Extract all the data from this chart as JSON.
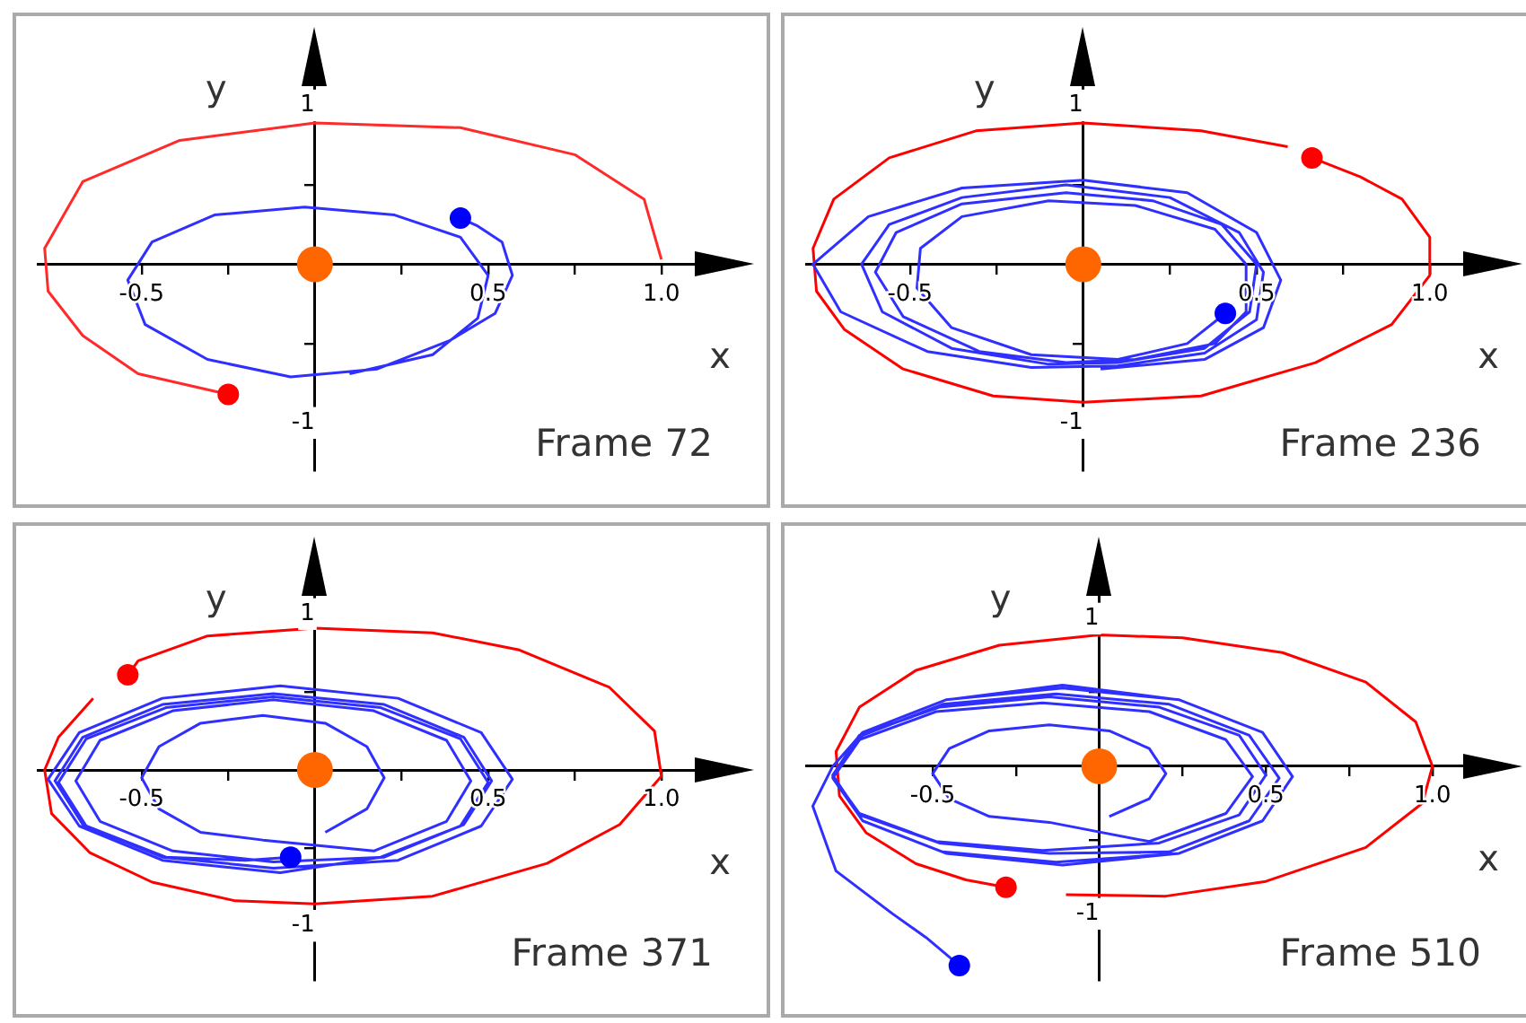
{
  "chart_data": [
    {
      "type": "line",
      "xlabel": "x",
      "ylabel": "y",
      "annotations": [
        "Frame 72"
      ],
      "grid": false,
      "legend": false,
      "xlim": [
        -0.8,
        1.2
      ],
      "ylim": [
        -1.3,
        1.35
      ],
      "xticks": [
        {
          "value": -0.5,
          "label": "-0.5"
        },
        {
          "value": -0.25,
          "label": null
        },
        {
          "value": 0.25,
          "label": null
        },
        {
          "value": 0.5,
          "label": "0.5"
        },
        {
          "value": 0.75,
          "label": null
        },
        {
          "value": 1,
          "label": "1.0"
        }
      ],
      "yticks": [
        {
          "value": -1,
          "label": "-1"
        },
        {
          "value": -0.5,
          "label": null
        },
        {
          "value": 0.5,
          "label": null
        },
        {
          "value": 1,
          "label": "1"
        }
      ],
      "series": [
        {
          "type": "line",
          "marker": "none",
          "color": "#ff2a2a",
          "x": [
            1.0,
            0.95,
            0.75,
            0.42,
            0,
            -0.39,
            -0.67,
            -0.78,
            -0.77,
            -0.67,
            -0.51,
            -0.25
          ],
          "values": [
            0.03,
            0.41,
            0.69,
            0.86,
            0.89,
            0.78,
            0.52,
            0.1,
            -0.17,
            -0.45,
            -0.69,
            -0.82
          ]
        },
        {
          "type": "line",
          "marker": "none",
          "color": "#2f2fff",
          "x": [
            0.1,
            0.34,
            0.47,
            0.5,
            0.42,
            0.23,
            -0.03,
            -0.29,
            -0.47,
            -0.54,
            -0.49,
            -0.31,
            -0.07,
            0.18,
            0.39,
            0.52,
            0.57,
            0.54,
            0.47,
            0.42
          ],
          "values": [
            -0.69,
            -0.57,
            -0.34,
            -0.07,
            0.17,
            0.31,
            0.36,
            0.31,
            0.14,
            -0.1,
            -0.38,
            -0.6,
            -0.71,
            -0.66,
            -0.48,
            -0.31,
            -0.07,
            0.14,
            0.24,
            0.29
          ]
        },
        {
          "type": "scatter",
          "marker": "circle",
          "color": "#ff0000",
          "x": [
            -0.25
          ],
          "values": [
            -0.82
          ]
        },
        {
          "type": "scatter",
          "marker": "circle",
          "color": "#0000ff",
          "x": [
            0.42
          ],
          "values": [
            0.29
          ]
        },
        {
          "type": "bubble",
          "marker": "circle",
          "color": "#ff6600",
          "x": [
            0
          ],
          "values": [
            0
          ],
          "sizes": [
            1
          ]
        }
      ]
    },
    {
      "type": "line",
      "xlabel": "x",
      "ylabel": "y",
      "annotations": [
        "Frame 236"
      ],
      "grid": false,
      "legend": false,
      "xlim": [
        -0.8,
        1.2
      ],
      "ylim": [
        -1.3,
        1.35
      ],
      "xticks": [
        {
          "value": -0.5,
          "label": "-0.5"
        },
        {
          "value": -0.25,
          "label": null
        },
        {
          "value": 0.25,
          "label": null
        },
        {
          "value": 0.5,
          "label": "0.5"
        },
        {
          "value": 0.75,
          "label": null
        },
        {
          "value": 1,
          "label": "1.0"
        }
      ],
      "yticks": [
        {
          "value": -1,
          "label": "-1"
        },
        {
          "value": -0.5,
          "label": null
        },
        {
          "value": 0.5,
          "label": null
        },
        {
          "value": 1,
          "label": "1"
        }
      ],
      "series": [
        {
          "type": "line",
          "marker": "none",
          "color": "#ff0000",
          "x": [
            0.59,
            0.34,
            0,
            -0.31,
            -0.56,
            -0.72,
            -0.78,
            -0.77,
            -0.69,
            -0.52,
            -0.26,
            0,
            0.34,
            0.67,
            0.89,
            1.0,
            1.0,
            0.92,
            0.8,
            0.66
          ],
          "values": [
            0.74,
            0.84,
            0.89,
            0.84,
            0.67,
            0.41,
            0.1,
            -0.17,
            -0.41,
            -0.66,
            -0.83,
            -0.87,
            -0.83,
            -0.62,
            -0.38,
            -0.07,
            0.17,
            0.41,
            0.55,
            0.67
          ]
        },
        {
          "type": "line",
          "marker": "none",
          "color": "#2f2fff",
          "x": [
            0.05,
            0.35,
            0.52,
            0.57,
            0.5,
            0.3,
            0,
            -0.35,
            -0.62,
            -0.78,
            -0.7,
            -0.45,
            -0.15,
            0.1,
            0.35,
            0.5,
            0.52,
            0.45,
            0.25,
            -0.05,
            -0.35,
            -0.56,
            -0.64,
            -0.58,
            -0.38,
            -0.1,
            0.1,
            0.35,
            0.48,
            0.5,
            0.4,
            0.2,
            -0.05,
            -0.35,
            -0.54,
            -0.6,
            -0.52,
            -0.3,
            -0.05,
            0.15,
            0.38,
            0.47,
            0.47,
            0.38,
            0.15,
            -0.1,
            -0.35,
            -0.47,
            -0.48,
            -0.38,
            -0.15,
            0.1,
            0.3,
            0.41
          ],
          "values": [
            -0.66,
            -0.6,
            -0.4,
            -0.1,
            0.2,
            0.45,
            0.53,
            0.48,
            0.3,
            0,
            -0.3,
            -0.55,
            -0.65,
            -0.64,
            -0.56,
            -0.35,
            -0.05,
            0.2,
            0.42,
            0.5,
            0.42,
            0.25,
            0,
            -0.3,
            -0.53,
            -0.63,
            -0.62,
            -0.53,
            -0.3,
            0,
            0.25,
            0.4,
            0.45,
            0.38,
            0.2,
            -0.05,
            -0.33,
            -0.55,
            -0.62,
            -0.6,
            -0.5,
            -0.3,
            0,
            0.22,
            0.37,
            0.4,
            0.3,
            0.1,
            -0.15,
            -0.4,
            -0.57,
            -0.6,
            -0.5,
            -0.31
          ]
        },
        {
          "type": "scatter",
          "marker": "circle",
          "color": "#ff0000",
          "x": [
            0.66
          ],
          "values": [
            0.67
          ]
        },
        {
          "type": "scatter",
          "marker": "circle",
          "color": "#0000ff",
          "x": [
            0.41
          ],
          "values": [
            -0.31
          ]
        },
        {
          "type": "bubble",
          "marker": "circle",
          "color": "#ff6600",
          "x": [
            0
          ],
          "values": [
            0
          ],
          "sizes": [
            1
          ]
        }
      ]
    },
    {
      "type": "line",
      "xlabel": "x",
      "ylabel": "y",
      "annotations": [
        "Frame 371"
      ],
      "grid": false,
      "legend": false,
      "xlim": [
        -0.8,
        1.2
      ],
      "ylim": [
        -1.35,
        1.35
      ],
      "xticks": [
        {
          "value": -0.5,
          "label": "-0.5"
        },
        {
          "value": -0.25,
          "label": null
        },
        {
          "value": 0.25,
          "label": null
        },
        {
          "value": 0.5,
          "label": "0.5"
        },
        {
          "value": 0.75,
          "label": null
        },
        {
          "value": 1,
          "label": "1.0"
        }
      ],
      "yticks": [
        {
          "value": -1,
          "label": "-1"
        },
        {
          "value": -0.5,
          "label": null
        },
        {
          "value": 0.5,
          "label": null
        },
        {
          "value": 1,
          "label": "1"
        }
      ],
      "series": [
        {
          "type": "line",
          "marker": "none",
          "color": "#ff0000",
          "x": [
            -0.64,
            -0.74,
            -0.78,
            -0.76,
            -0.65,
            -0.47,
            -0.23,
            0,
            0.34,
            0.67,
            0.88,
            1.0,
            0.98,
            0.85,
            0.59,
            0.34,
            0,
            -0.31,
            -0.51,
            -0.54
          ],
          "values": [
            0.46,
            0.21,
            0,
            -0.28,
            -0.53,
            -0.72,
            -0.84,
            -0.86,
            -0.81,
            -0.6,
            -0.35,
            -0.04,
            0.25,
            0.53,
            0.77,
            0.88,
            0.91,
            0.86,
            0.7,
            0.61
          ]
        },
        {
          "type": "line",
          "marker": "none",
          "color": "#2f2fff",
          "x": [
            0.03,
            0.15,
            0.2,
            0.15,
            0.03,
            -0.15,
            -0.33,
            -0.45,
            -0.5,
            -0.45,
            -0.33,
            -0.15,
            0.17,
            0.38,
            0.45,
            0.38,
            0.17,
            -0.12,
            -0.41,
            -0.62,
            -0.69,
            -0.62,
            -0.41,
            -0.12,
            0.2,
            0.43,
            0.51,
            0.43,
            0.2,
            -0.12,
            -0.44,
            -0.67,
            -0.75,
            -0.67,
            -0.44,
            -0.12,
            0.24,
            0.48,
            0.57,
            0.48,
            0.24,
            -0.1,
            -0.44,
            -0.68,
            -0.77,
            -0.68,
            -0.44,
            -0.1,
            0.19,
            0.42,
            0.5,
            0.42,
            0.19,
            -0.12,
            -0.43,
            -0.66,
            -0.74,
            -0.66,
            -0.43,
            -0.2,
            -0.07
          ],
          "values": [
            -0.4,
            -0.25,
            -0.05,
            0.15,
            0.3,
            0.35,
            0.3,
            0.15,
            -0.05,
            -0.25,
            -0.4,
            -0.45,
            -0.52,
            -0.33,
            -0.07,
            0.19,
            0.38,
            0.45,
            0.38,
            0.19,
            -0.07,
            -0.33,
            -0.52,
            -0.59,
            -0.56,
            -0.35,
            -0.07,
            0.21,
            0.42,
            0.49,
            0.42,
            0.21,
            -0.07,
            -0.35,
            -0.56,
            -0.63,
            -0.58,
            -0.36,
            -0.06,
            0.24,
            0.46,
            0.54,
            0.46,
            0.24,
            -0.06,
            -0.36,
            -0.58,
            -0.66,
            -0.56,
            -0.36,
            -0.08,
            0.2,
            0.4,
            0.47,
            0.4,
            0.2,
            -0.08,
            -0.36,
            -0.56,
            -0.58,
            -0.56
          ]
        },
        {
          "type": "scatter",
          "marker": "circle",
          "color": "#ff0000",
          "x": [
            -0.54
          ],
          "values": [
            0.61
          ]
        },
        {
          "type": "scatter",
          "marker": "circle",
          "color": "#0000ff",
          "x": [
            -0.07
          ],
          "values": [
            -0.56
          ]
        },
        {
          "type": "bubble",
          "marker": "circle",
          "color": "#ff6600",
          "x": [
            0
          ],
          "values": [
            0
          ],
          "sizes": [
            1
          ]
        }
      ]
    },
    {
      "type": "line",
      "xlabel": "x",
      "ylabel": "y",
      "annotations": [
        "Frame 510"
      ],
      "grid": false,
      "legend": false,
      "xlim": [
        -0.88,
        1.2
      ],
      "ylim": [
        -1.45,
        1.4
      ],
      "xticks": [
        {
          "value": -0.5,
          "label": "-0.5"
        },
        {
          "value": -0.25,
          "label": null
        },
        {
          "value": 0.25,
          "label": null
        },
        {
          "value": 0.5,
          "label": "0.5"
        },
        {
          "value": 0.75,
          "label": null
        },
        {
          "value": 1,
          "label": "1.0"
        }
      ],
      "yticks": [
        {
          "value": -1,
          "label": "-1"
        },
        {
          "value": -0.5,
          "label": null
        },
        {
          "value": 0.5,
          "label": null
        },
        {
          "value": 1,
          "label": "1"
        }
      ],
      "series": [
        {
          "type": "line",
          "marker": "none",
          "color": "#ff0000",
          "x": [
            -0.1,
            0.2,
            0.5,
            0.8,
            0.97,
            1.0,
            0.95,
            0.8,
            0.55,
            0.25,
            0,
            -0.3,
            -0.55,
            -0.72,
            -0.79,
            -0.78,
            -0.7,
            -0.55,
            -0.4,
            -0.28
          ],
          "values": [
            -0.87,
            -0.88,
            -0.78,
            -0.55,
            -0.25,
            0,
            0.3,
            0.57,
            0.77,
            0.87,
            0.89,
            0.82,
            0.65,
            0.4,
            0.1,
            -0.2,
            -0.45,
            -0.66,
            -0.77,
            -0.82
          ]
        },
        {
          "type": "line",
          "marker": "none",
          "color": "#2f2fff",
          "x": [
            0.03,
            0.15,
            0.2,
            0.15,
            0.03,
            -0.15,
            -0.33,
            -0.45,
            -0.5,
            -0.45,
            -0.33,
            -0.15,
            0.15,
            0.38,
            0.46,
            0.38,
            0.15,
            -0.17,
            -0.49,
            -0.72,
            -0.8,
            -0.72,
            -0.49,
            -0.17,
            0.18,
            0.42,
            0.5,
            0.42,
            0.18,
            -0.15,
            -0.48,
            -0.72,
            -0.8,
            -0.72,
            -0.48,
            -0.15,
            0.21,
            0.45,
            0.54,
            0.45,
            0.21,
            -0.13,
            -0.47,
            -0.71,
            -0.8,
            -0.71,
            -0.47,
            -0.13,
            0.24,
            0.49,
            0.58,
            0.49,
            0.24,
            -0.11,
            -0.46,
            -0.71,
            -0.8,
            -0.71,
            -0.46,
            -0.11,
            0.24,
            0.49,
            0.58,
            0.49,
            0.24,
            -0.11,
            -0.46,
            -0.71,
            -0.8,
            -0.86,
            -0.79,
            -0.62,
            -0.52,
            -0.42
          ],
          "values": [
            -0.34,
            -0.22,
            -0.05,
            0.12,
            0.24,
            0.28,
            0.24,
            0.12,
            -0.05,
            -0.22,
            -0.34,
            -0.38,
            -0.51,
            -0.32,
            -0.07,
            0.18,
            0.37,
            0.43,
            0.37,
            0.18,
            -0.07,
            -0.32,
            -0.51,
            -0.57,
            -0.52,
            -0.33,
            -0.06,
            0.21,
            0.4,
            0.47,
            0.4,
            0.21,
            -0.06,
            -0.33,
            -0.52,
            -0.59,
            -0.58,
            -0.37,
            -0.08,
            0.21,
            0.42,
            0.49,
            0.42,
            0.21,
            -0.08,
            -0.37,
            -0.58,
            -0.65,
            -0.59,
            -0.37,
            -0.07,
            0.23,
            0.45,
            0.53,
            0.45,
            0.23,
            -0.07,
            -0.37,
            -0.59,
            -0.67,
            -0.59,
            -0.37,
            -0.07,
            0.23,
            0.45,
            0.55,
            0.45,
            0.23,
            0,
            -0.27,
            -0.71,
            -1.0,
            -1.16,
            -1.35
          ]
        },
        {
          "type": "scatter",
          "marker": "circle",
          "color": "#ff0000",
          "x": [
            -0.28
          ],
          "values": [
            -0.82
          ]
        },
        {
          "type": "scatter",
          "marker": "circle",
          "color": "#0000ff",
          "x": [
            -0.42
          ],
          "values": [
            -1.35
          ]
        },
        {
          "type": "bubble",
          "marker": "circle",
          "color": "#ff6600",
          "x": [
            0
          ],
          "values": [
            0
          ],
          "sizes": [
            1
          ]
        }
      ]
    }
  ]
}
